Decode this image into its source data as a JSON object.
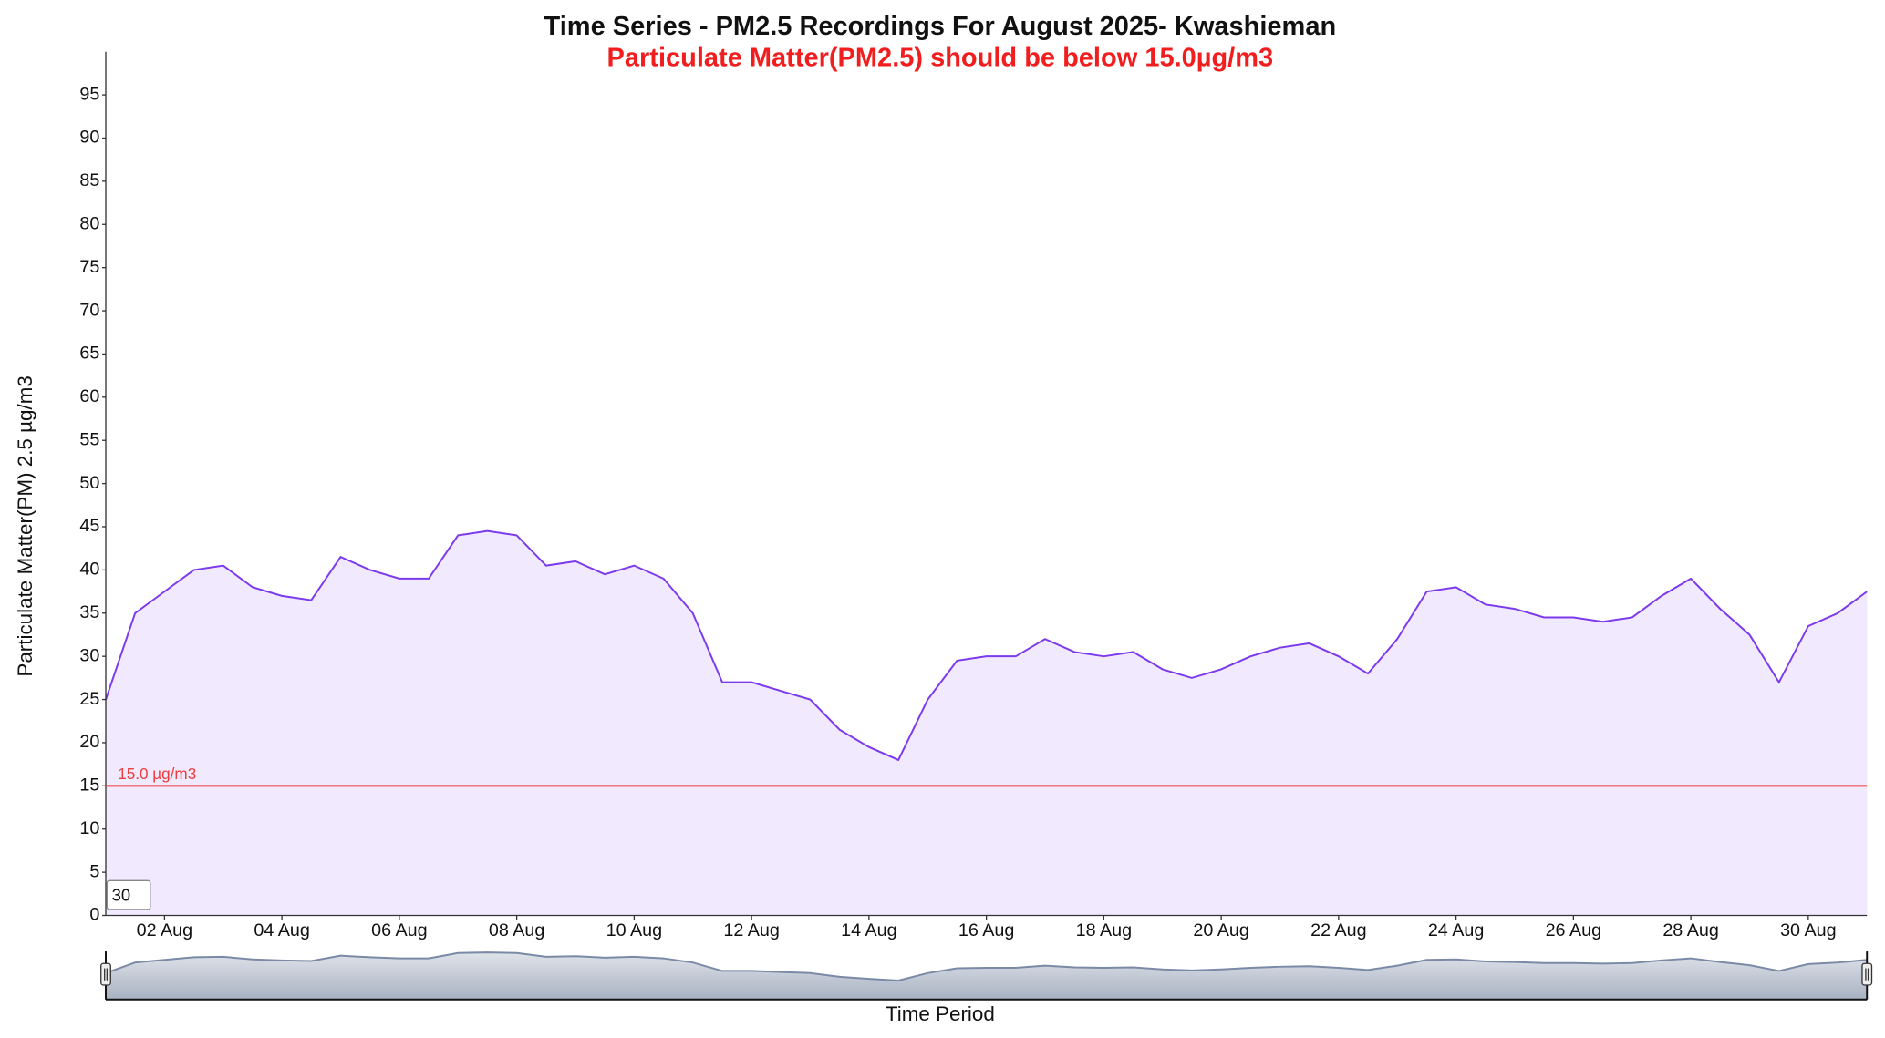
{
  "chart_data": {
    "type": "area",
    "title": "Time Series - PM2.5 Recordings For August 2025- Kwashieman",
    "subtitle": "Particulate Matter(PM2.5) should be below 15.0µg/m3",
    "y_label": "Particulate Matter(PM) 2.5 µg/m3",
    "x_label": "Time Period",
    "color": "#7c3aed",
    "fill": "#f1e9fe",
    "x": [
      1,
      1.5,
      2,
      2.5,
      3,
      3.5,
      4,
      4.5,
      5,
      5.5,
      6,
      6.5,
      7,
      7.5,
      8,
      8.5,
      9,
      9.5,
      10,
      10.5,
      11,
      11.5,
      12,
      12.5,
      13,
      13.5,
      14,
      14.5,
      15,
      15.5,
      16,
      16.5,
      17,
      17.5,
      18,
      18.5,
      19,
      19.5,
      20,
      20.5,
      21,
      21.5,
      22,
      22.5,
      23,
      23.5,
      24,
      24.5,
      25,
      25.5,
      26,
      26.5,
      27,
      27.5,
      28,
      28.5,
      29,
      29.5,
      30,
      30.5,
      31
    ],
    "values": [
      25,
      35,
      37.5,
      40,
      40.5,
      38,
      37,
      36.5,
      41.5,
      40,
      39,
      39,
      44,
      44.5,
      44,
      40.5,
      41,
      39.5,
      40.5,
      39,
      35,
      27,
      27,
      26,
      25,
      21.5,
      19.5,
      18,
      25,
      29.5,
      30,
      30,
      32,
      30.5,
      30,
      30.5,
      28.5,
      27.5,
      28.5,
      30,
      31,
      31.5,
      30,
      28,
      32,
      37.5,
      38,
      36,
      35.5,
      34.5,
      34.5,
      34,
      34.5,
      37,
      39,
      35.5,
      32.5,
      27,
      33.5,
      35,
      37.5
    ],
    "xlim": [
      1,
      31
    ],
    "xticks": [
      {
        "value": 2,
        "label": "02 Aug"
      },
      {
        "value": 4,
        "label": "04 Aug"
      },
      {
        "value": 6,
        "label": "06 Aug"
      },
      {
        "value": 8,
        "label": "08 Aug"
      },
      {
        "value": 10,
        "label": "10 Aug"
      },
      {
        "value": 12,
        "label": "12 Aug"
      },
      {
        "value": 14,
        "label": "14 Aug"
      },
      {
        "value": 16,
        "label": "16 Aug"
      },
      {
        "value": 18,
        "label": "18 Aug"
      },
      {
        "value": 20,
        "label": "20 Aug"
      },
      {
        "value": 22,
        "label": "22 Aug"
      },
      {
        "value": 24,
        "label": "24 Aug"
      },
      {
        "value": 26,
        "label": "26 Aug"
      },
      {
        "value": 28,
        "label": "28 Aug"
      },
      {
        "value": 30,
        "label": "30 Aug"
      }
    ],
    "ylim": [
      0,
      100
    ],
    "yticks": [
      0,
      5,
      10,
      15,
      20,
      25,
      30,
      35,
      40,
      45,
      50,
      55,
      60,
      65,
      70,
      75,
      80,
      85,
      90,
      95
    ],
    "threshold": {
      "value": 15,
      "label": "15.0 µg/m3",
      "color": "#f03c3c"
    },
    "range_input": 30
  }
}
